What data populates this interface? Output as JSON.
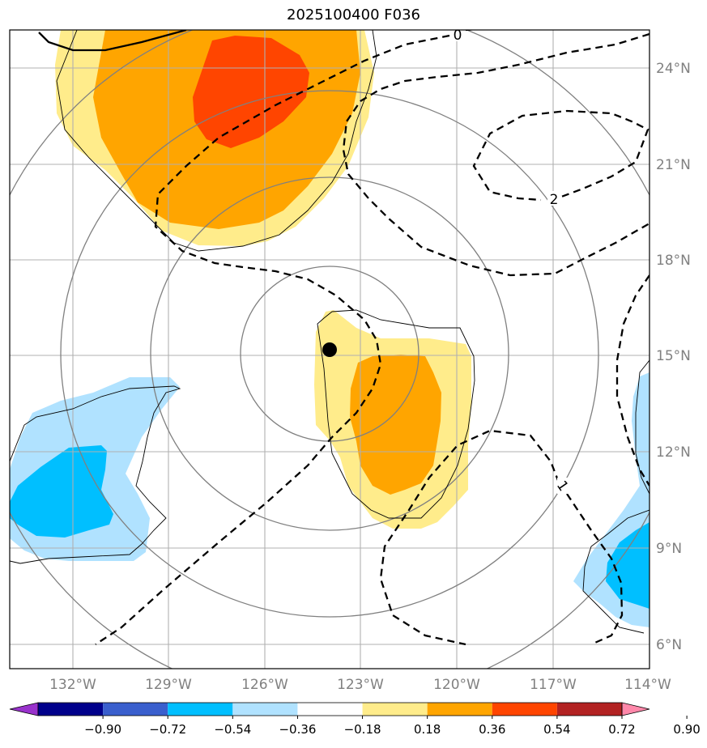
{
  "title": "2025100400 F036",
  "lat_labels": [
    "24°N",
    "21°N",
    "18°N",
    "15°N",
    "12°N",
    "9°N",
    "6°N"
  ],
  "lon_labels": [
    "132°W",
    "129°W",
    "126°W",
    "123°W",
    "120°W",
    "117°W",
    "114°W"
  ],
  "contour_labels": [
    "0",
    "2",
    "1"
  ],
  "colorbar": {
    "ticks": [
      "−0.90",
      "−0.72",
      "−0.54",
      "−0.36",
      "−0.18",
      "0.18",
      "0.36",
      "0.54",
      "0.72",
      "0.90"
    ],
    "colors": [
      "#9932cc",
      "#00008b",
      "#3a5fcd",
      "#00bfff",
      "#b0e2ff",
      "#ffffff",
      "#ffec8b",
      "#ffa500",
      "#ff4500",
      "#b22222",
      "#ff88aa"
    ]
  },
  "center_marker": {
    "lat": 15.2,
    "lon": -123.9
  }
}
